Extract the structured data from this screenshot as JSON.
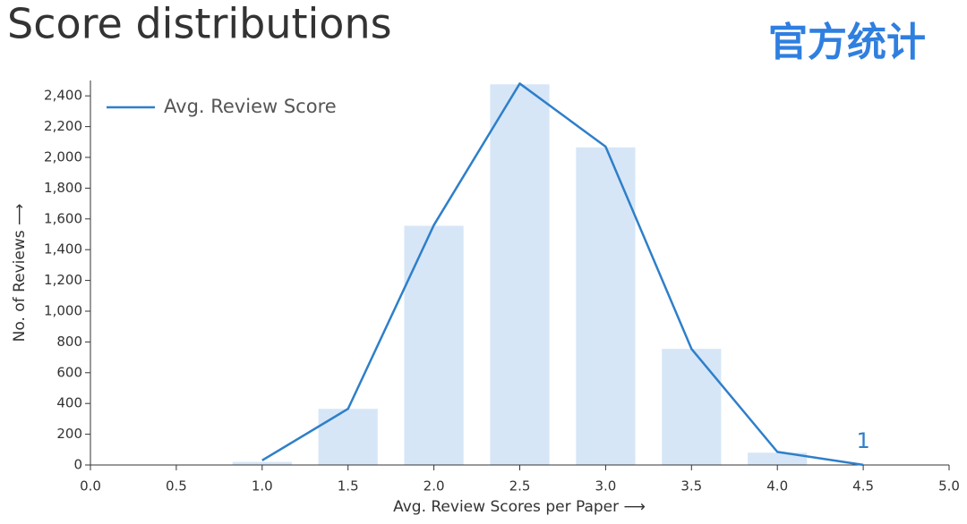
{
  "title": "Score distributions",
  "watermark": "官方统计",
  "chart_data": {
    "type": "bar-line",
    "x_label": "Avg. Review Scores per Paper ⟶",
    "y_label": "No. of Reviews ⟶",
    "x": [
      1.0,
      1.5,
      2.0,
      2.5,
      3.0,
      3.5,
      4.0,
      4.5
    ],
    "bars": {
      "color": "#d6e6f7",
      "values": [
        20,
        365,
        1555,
        2475,
        2065,
        755,
        80,
        1
      ]
    },
    "series": [
      {
        "name": "Avg. Review Score",
        "color": "#2e7fc9",
        "values": [
          30,
          365,
          1560,
          2480,
          2070,
          755,
          85,
          1
        ]
      }
    ],
    "annotation": {
      "x": 4.5,
      "value": 1
    },
    "xlim": [
      0,
      5
    ],
    "xticks": [
      {
        "value": 0,
        "label": "0.0"
      },
      {
        "value": 0.5,
        "label": "0.5"
      },
      {
        "value": 1,
        "label": "1.0"
      },
      {
        "value": 1.5,
        "label": "1.5"
      },
      {
        "value": 2,
        "label": "2.0"
      },
      {
        "value": 2.5,
        "label": "2.5"
      },
      {
        "value": 3,
        "label": "3.0"
      },
      {
        "value": 3.5,
        "label": "3.5"
      },
      {
        "value": 4,
        "label": "4.0"
      },
      {
        "value": 4.5,
        "label": "4.5"
      },
      {
        "value": 5,
        "label": "5.0"
      }
    ],
    "ylim": [
      0,
      2500
    ],
    "yticks": [
      0,
      200,
      400,
      600,
      800,
      {
        "value": 1000,
        "label": "1,000"
      },
      {
        "value": 1200,
        "label": "1,200"
      },
      {
        "value": 1400,
        "label": "1,400"
      },
      {
        "value": 1600,
        "label": "1,600"
      },
      {
        "value": 1800,
        "label": "1,800"
      },
      {
        "value": 2000,
        "label": "2,000"
      },
      {
        "value": 2200,
        "label": "2,200"
      },
      {
        "value": 2400,
        "label": "2,400"
      }
    ],
    "legend": "upper left"
  }
}
